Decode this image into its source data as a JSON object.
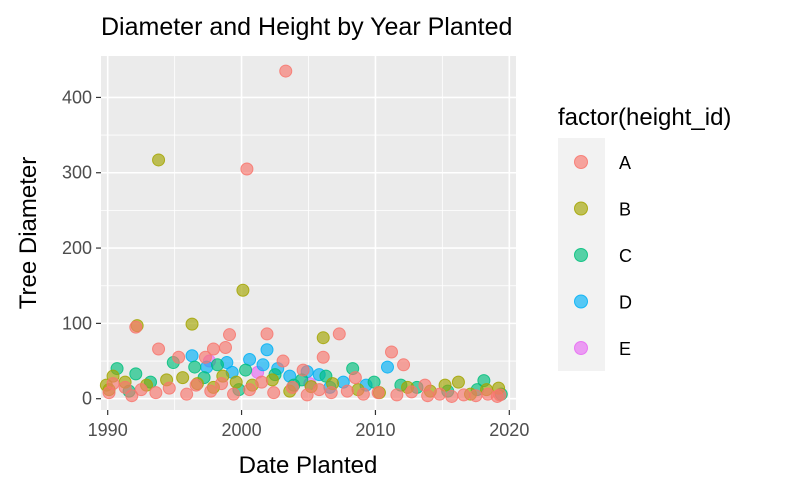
{
  "chart_data": {
    "type": "scatter",
    "title": "Diameter and Height by Year Planted",
    "xlabel": "Date Planted",
    "ylabel": "Tree Diameter",
    "xlim": [
      1989.5,
      2020.5
    ],
    "ylim": [
      -15,
      455
    ],
    "x_ticks": [
      1990,
      2000,
      2010,
      2020
    ],
    "y_ticks": [
      0,
      100,
      200,
      300,
      400
    ],
    "grid": true,
    "legend_position": "right",
    "legend": {
      "title": "factor(height_id)",
      "entries": [
        {
          "label": "A",
          "color": "#F8766D"
        },
        {
          "label": "B",
          "color": "#A3A500"
        },
        {
          "label": "C",
          "color": "#00BF7D"
        },
        {
          "label": "D",
          "color": "#00B0F6"
        },
        {
          "label": "E",
          "color": "#E76BF3"
        }
      ]
    },
    "series": [
      {
        "name": "A",
        "color": "#F8766D",
        "points": [
          [
            2003.3,
            435
          ],
          [
            2000.4,
            305
          ],
          [
            1992.1,
            95
          ],
          [
            1993.8,
            66
          ],
          [
            1997.9,
            66
          ],
          [
            1998.8,
            68
          ],
          [
            1999.1,
            85
          ],
          [
            2001.9,
            86
          ],
          [
            2003.1,
            50
          ],
          [
            2006.1,
            55
          ],
          [
            2007.3,
            86
          ],
          [
            2011.2,
            62
          ],
          [
            2012.1,
            45
          ],
          [
            1995.3,
            55
          ],
          [
            1997.3,
            55
          ],
          [
            2004.6,
            38
          ],
          [
            2008.5,
            28
          ],
          [
            2013.7,
            18
          ],
          [
            1990.4,
            20
          ],
          [
            1991.3,
            15
          ],
          [
            1992.5,
            12
          ],
          [
            1993.6,
            8
          ],
          [
            1994.6,
            14
          ],
          [
            1995.9,
            6
          ],
          [
            1996.6,
            18
          ],
          [
            1997.7,
            10
          ],
          [
            1998.5,
            20
          ],
          [
            1999.4,
            6
          ],
          [
            2000.6,
            12
          ],
          [
            2001.5,
            22
          ],
          [
            2002.4,
            8
          ],
          [
            2003.8,
            15
          ],
          [
            2004.9,
            5
          ],
          [
            2005.8,
            12
          ],
          [
            2006.7,
            8
          ],
          [
            2007.9,
            10
          ],
          [
            2009.1,
            6
          ],
          [
            2010.2,
            8
          ],
          [
            2011.6,
            5
          ],
          [
            2012.7,
            9
          ],
          [
            2013.9,
            4
          ],
          [
            2014.8,
            6
          ],
          [
            2015.7,
            3
          ],
          [
            2016.6,
            5
          ],
          [
            2017.5,
            4
          ],
          [
            2018.4,
            6
          ],
          [
            2019.1,
            3
          ],
          [
            2019.3,
            5
          ],
          [
            1990.1,
            8
          ],
          [
            1991.8,
            4
          ]
        ]
      },
      {
        "name": "B",
        "color": "#A3A500",
        "points": [
          [
            1993.8,
            317
          ],
          [
            2000.1,
            144
          ],
          [
            1992.2,
            97
          ],
          [
            1996.3,
            99
          ],
          [
            2006.1,
            81
          ],
          [
            1989.9,
            18
          ],
          [
            1990.1,
            12
          ],
          [
            1991.3,
            22
          ],
          [
            1992.9,
            18
          ],
          [
            1994.4,
            25
          ],
          [
            1995.6,
            28
          ],
          [
            1996.7,
            20
          ],
          [
            1997.9,
            15
          ],
          [
            1998.6,
            30
          ],
          [
            1999.6,
            22
          ],
          [
            2000.8,
            18
          ],
          [
            2002.3,
            25
          ],
          [
            2003.6,
            10
          ],
          [
            2005.2,
            16
          ],
          [
            2006.8,
            20
          ],
          [
            2008.7,
            12
          ],
          [
            2010.3,
            8
          ],
          [
            2012.4,
            15
          ],
          [
            2014.1,
            10
          ],
          [
            2015.2,
            18
          ],
          [
            2016.2,
            22
          ],
          [
            2017.1,
            6
          ],
          [
            2018.3,
            12
          ],
          [
            2019.2,
            14
          ],
          [
            1990.4,
            30
          ]
        ]
      },
      {
        "name": "C",
        "color": "#00BF7D",
        "points": [
          [
            1990.7,
            40
          ],
          [
            1992.1,
            33
          ],
          [
            1994.9,
            48
          ],
          [
            1996.5,
            42
          ],
          [
            1998.2,
            45
          ],
          [
            2000.3,
            38
          ],
          [
            2002.5,
            32
          ],
          [
            2004.5,
            25
          ],
          [
            2006.3,
            30
          ],
          [
            2008.3,
            40
          ],
          [
            2009.9,
            22
          ],
          [
            2011.9,
            18
          ],
          [
            2013.1,
            15
          ],
          [
            2015.4,
            10
          ],
          [
            2018.1,
            24
          ],
          [
            1991.6,
            10
          ],
          [
            1993.2,
            22
          ],
          [
            1997.2,
            28
          ],
          [
            1999.8,
            12
          ],
          [
            2003.9,
            18
          ],
          [
            2017.6,
            12
          ],
          [
            2019.4,
            6
          ]
        ]
      },
      {
        "name": "D",
        "color": "#00B0F6",
        "points": [
          [
            1996.3,
            57
          ],
          [
            1997.4,
            42
          ],
          [
            1998.9,
            48
          ],
          [
            2000.6,
            52
          ],
          [
            2001.6,
            45
          ],
          [
            2002.7,
            40
          ],
          [
            2003.6,
            30
          ],
          [
            2004.9,
            36
          ],
          [
            2005.8,
            32
          ],
          [
            2010.9,
            42
          ],
          [
            2001.9,
            65
          ],
          [
            2007.6,
            22
          ],
          [
            2009.3,
            18
          ],
          [
            1999.3,
            35
          ],
          [
            2006.6,
            15
          ]
        ]
      },
      {
        "name": "E",
        "color": "#E76BF3",
        "points": [
          [
            1997.6,
            50
          ],
          [
            2001.2,
            35
          ],
          [
            2005.1,
            20
          ]
        ]
      }
    ]
  }
}
